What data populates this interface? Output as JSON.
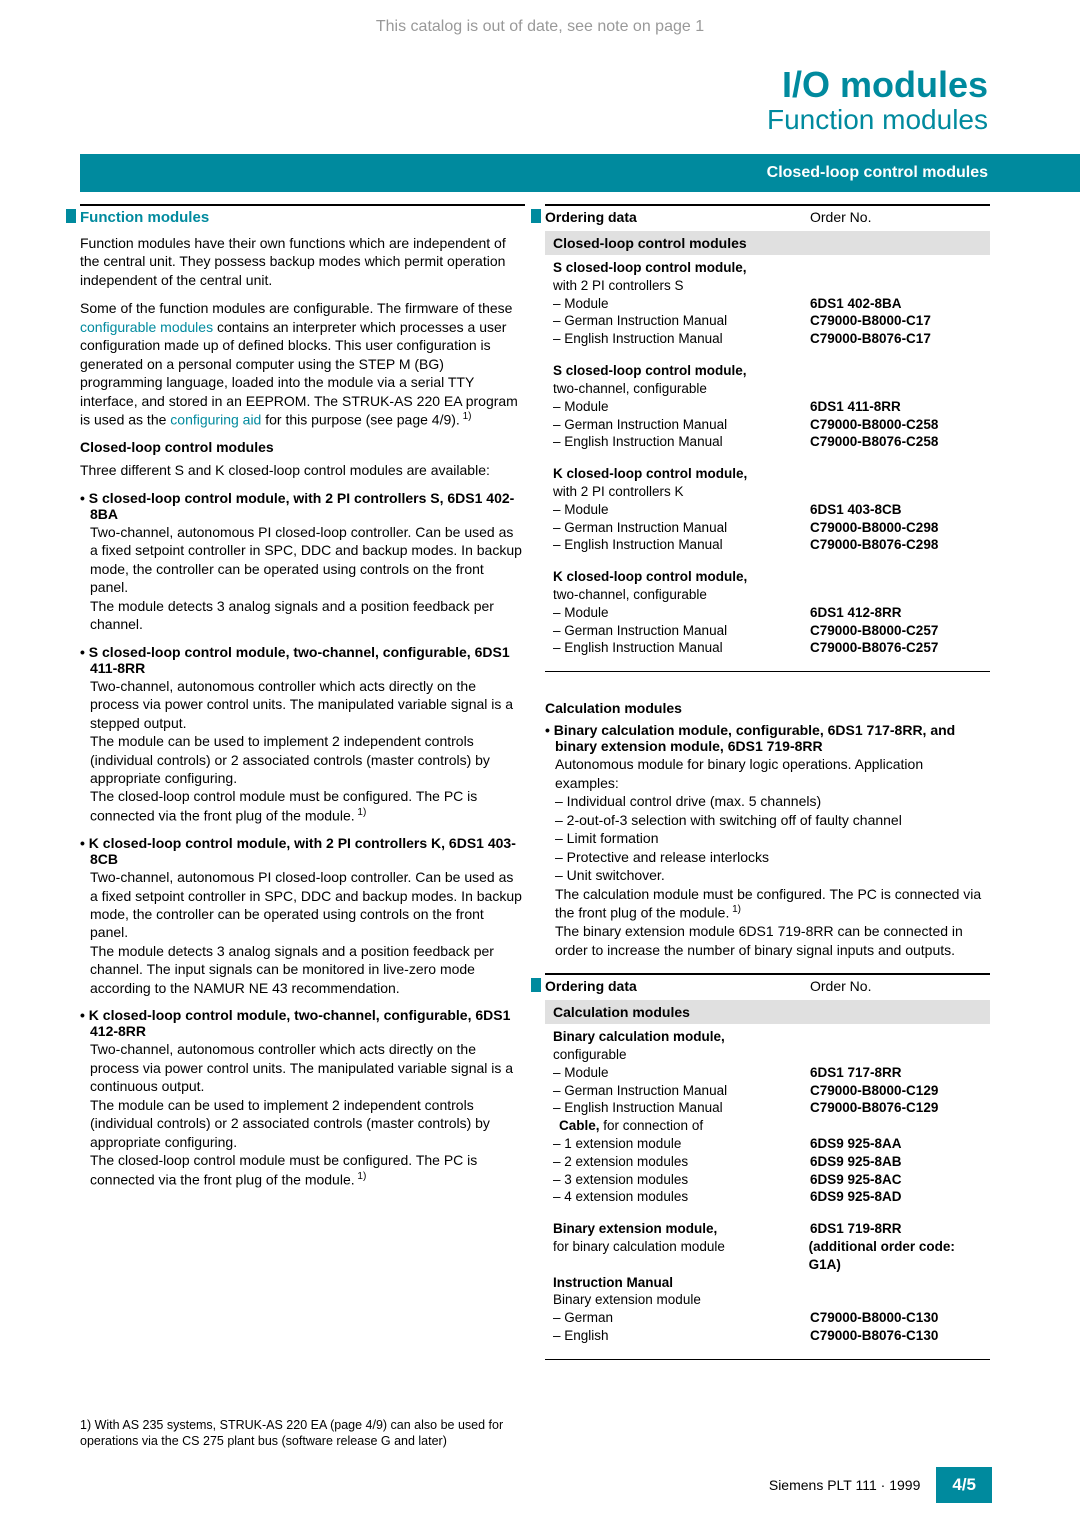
{
  "header_note": "This catalog is out of date, see note on page 1",
  "title": {
    "main": "I/O modules",
    "sub": "Function modules"
  },
  "banner": "Closed-loop control modules",
  "left": {
    "section_title": "Function modules",
    "p1": "Function modules have their own functions which are independent of the central unit. They possess backup modes which permit operation independent of the central unit.",
    "p2a": "Some of the function modules are configurable. The firmware of these ",
    "p2b": "configurable modules",
    "p2c": " contains an interpreter which processes a user configuration made up of defined blocks. This user configuration is generated on a personal computer using the STEP M (BG) programming language, loaded into the module via a serial TTY interface, and stored in an EEPROM. The STRUK-AS 220 EA program is used as the ",
    "p2d": "configuring aid",
    "p2e": " for this purpose (see page 4/9).",
    "sub1": "Closed-loop control modules",
    "p3": "Three different S and K closed-loop control modules are available:",
    "items": [
      {
        "head": "• S closed-loop control module, with 2 PI controllers S, 6DS1 402-8BA",
        "body": "Two-channel, autonomous PI closed-loop controller. Can be used as a fixed setpoint controller in SPC, DDC and backup modes. In backup mode, the controller can be operated using controls on the front panel.\nThe module detects 3 analog signals and a position feedback per channel."
      },
      {
        "head": "• S closed-loop control module, two-channel, configurable, 6DS1 411-8RR",
        "body": "Two-channel, autonomous controller which acts directly on the process via power control units. The manipulated variable signal is a stepped output.\nThe module can be used to implement 2 independent controls (individual controls) or 2 associated controls (master controls) by appropriate configuring.\nThe closed-loop control module must be configured. The PC is connected via the front plug of the module."
      },
      {
        "head": "• K closed-loop control module, with 2 PI controllers K, 6DS1 403-8CB",
        "body": "Two-channel, autonomous PI closed-loop controller. Can be used as a fixed setpoint controller in SPC, DDC and backup modes. In backup mode, the controller can be operated using controls on the front panel.\nThe module detects 3 analog signals and a position feedback per channel. The input signals can be monitored in live-zero mode according to the NAMUR NE 43 recommendation."
      },
      {
        "head": "• K closed-loop control module, two-channel, configurable, 6DS1 412-8RR",
        "body": "Two-channel, autonomous controller which acts directly on the process via power control units. The manipulated variable signal is a continuous output.\nThe module can be used to implement 2 independent controls (individual controls) or 2 associated controls (master controls) by appropriate configuring.\nThe closed-loop control module must be configured. The PC is connected via the front plug of the module."
      }
    ]
  },
  "order1": {
    "header_left": "Ordering data",
    "header_right": "Order No.",
    "group_title": "Closed-loop control modules",
    "blocks": [
      {
        "title": "S closed-loop control module,",
        "sub": "with 2 PI controllers S",
        "rows": [
          {
            "l": "– Module",
            "r": "6DS1 402-8BA"
          },
          {
            "l": "– German Instruction Manual",
            "r": "C79000-B8000-C17"
          },
          {
            "l": "– English Instruction Manual",
            "r": "C79000-B8076-C17"
          }
        ]
      },
      {
        "title": "S closed-loop control module,",
        "sub": "two-channel, configurable",
        "rows": [
          {
            "l": "– Module",
            "r": "6DS1 411-8RR"
          },
          {
            "l": "– German Instruction Manual",
            "r": "C79000-B8000-C258"
          },
          {
            "l": "– English Instruction Manual",
            "r": "C79000-B8076-C258"
          }
        ]
      },
      {
        "title": "K closed-loop control module,",
        "sub": "with 2 PI controllers K",
        "rows": [
          {
            "l": "– Module",
            "r": "6DS1 403-8CB"
          },
          {
            "l": "– German Instruction Manual",
            "r": "C79000-B8000-C298"
          },
          {
            "l": "– English Instruction Manual",
            "r": "C79000-B8076-C298"
          }
        ]
      },
      {
        "title": "K closed-loop control module,",
        "sub": "two-channel, configurable",
        "rows": [
          {
            "l": "– Module",
            "r": "6DS1 412-8RR"
          },
          {
            "l": "– German Instruction Manual",
            "r": "C79000-B8000-C257"
          },
          {
            "l": "– English Instruction Manual",
            "r": "C79000-B8076-C257"
          }
        ]
      }
    ]
  },
  "calc": {
    "title": "Calculation modules",
    "head": "• Binary calculation module, configurable, 6DS1 717-8RR, and\nbinary extension module, 6DS1 719-8RR",
    "body1": "Autonomous module for binary logic operations. Application examples:",
    "lines": [
      "– Individual control drive (max. 5 channels)",
      "– 2-out-of-3 selection with switching off of faulty channel",
      "– Limit formation",
      "– Protective and release interlocks",
      "– Unit switchover."
    ],
    "body2a": "The calculation module must be configured. The PC is connected via the front plug of the module.",
    "body2b": "The binary extension module 6DS1 719-8RR can be connected in order to increase the number of binary signal inputs and outputs."
  },
  "order2": {
    "header_left": "Ordering data",
    "header_right": "Order No.",
    "group_title": "Calculation modules",
    "block1": {
      "title": "Binary calculation module,",
      "sub": "configurable",
      "rows": [
        {
          "l": "– Module",
          "r": "6DS1 717-8RR"
        },
        {
          "l": "– German Instruction Manual",
          "r": "C79000-B8000-C129"
        },
        {
          "l": "– English Instruction Manual",
          "r": "C79000-B8076-C129"
        }
      ],
      "cable_title": "Cable,",
      "cable_sub": " for connection of",
      "cable_rows": [
        {
          "l": "– 1 extension module",
          "r": "6DS9 925-8AA"
        },
        {
          "l": "– 2 extension modules",
          "r": "6DS9 925-8AB"
        },
        {
          "l": "– 3 extension modules",
          "r": "6DS9 925-8AC"
        },
        {
          "l": "– 4 extension modules",
          "r": "6DS9 925-8AD"
        }
      ]
    },
    "block2": {
      "title": "Binary extension module,",
      "sub": "for binary calculation module",
      "right1": "6DS1 719-8RR",
      "right2": "(additional order code: G1A)",
      "man_title": "Instruction Manual",
      "man_sub": "Binary extension module",
      "rows": [
        {
          "l": "– German",
          "r": "C79000-B8000-C130"
        },
        {
          "l": "– English",
          "r": "C79000-B8076-C130"
        }
      ]
    }
  },
  "footnote": "1) With AS 235 systems, STRUK-AS 220 EA (page 4/9) can also be used for operations via the CS 275 plant bus (software release G and later)",
  "footer": {
    "text": "Siemens PLT 111 · 1999",
    "page": "4/5"
  }
}
